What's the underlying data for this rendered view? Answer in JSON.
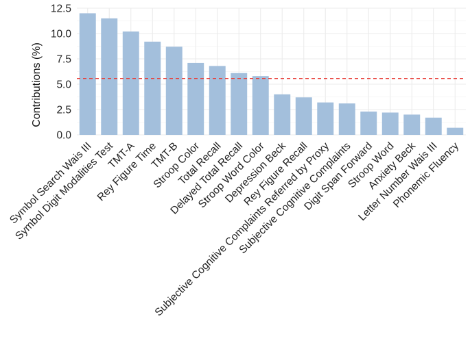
{
  "chart_data": {
    "type": "bar",
    "title": "",
    "xlabel": "",
    "ylabel": "Contributions (%)",
    "ylim": [
      0,
      12.5
    ],
    "yticks": [
      "0.0",
      "2.5",
      "5.0",
      "7.5",
      "10.0",
      "12.5"
    ],
    "grid": true,
    "bar_color": "#a3bfdc",
    "reference_line": {
      "value": 5.56,
      "color": "#e8403a",
      "style": "dashed"
    },
    "categories": [
      "Symbol Search Wais III",
      "Symbol Digit Modalities Test",
      "TMT-A",
      "Rey Figure Time",
      "TMT-B",
      "Stroop Color",
      "Total Recall",
      "Delayed Total Recall",
      "Stroop Word Color",
      "Depression Beck",
      "Rey Figure Recall",
      "Subjective Cognitive Complaints Referred by Proxy",
      "Subjective Cognitive Complaints",
      "Digit Span Forward",
      "Stroop Word",
      "Anxiety Beck",
      "Letter Number Wais III",
      "Phonemic Fluency"
    ],
    "values": [
      12.0,
      11.5,
      10.2,
      9.2,
      8.7,
      7.1,
      6.8,
      6.1,
      5.8,
      4.0,
      3.7,
      3.2,
      3.1,
      2.3,
      2.2,
      2.0,
      1.7,
      0.7
    ]
  }
}
